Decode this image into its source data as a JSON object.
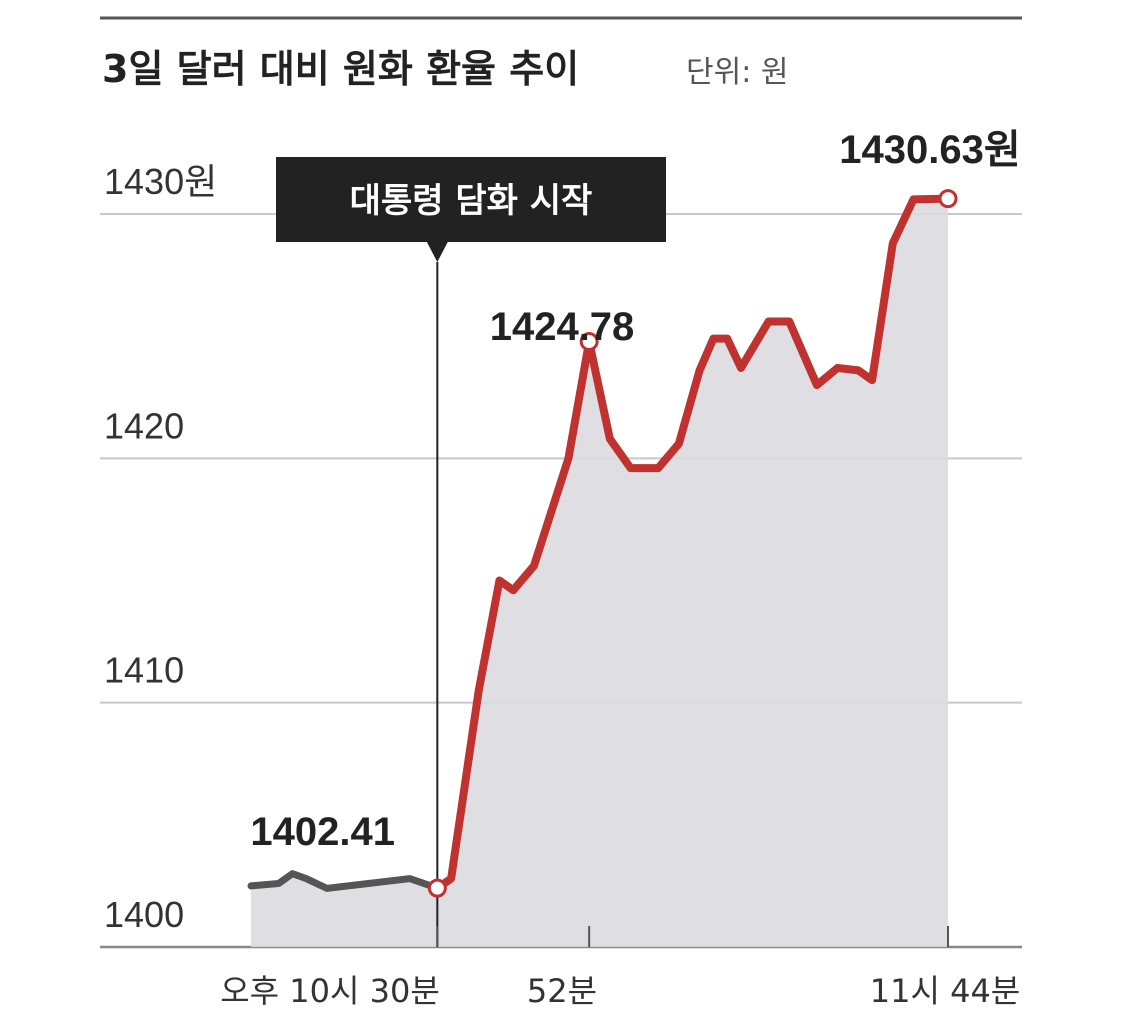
{
  "chart_data": {
    "type": "line",
    "title": "3일 달러 대비 원화 환율 추이",
    "unit_label": "단위: 원",
    "ylim": [
      1400,
      1430
    ],
    "y_ticks": [
      {
        "value": 1430,
        "label": "1430원"
      },
      {
        "value": 1420,
        "label": "1420"
      },
      {
        "value": 1410,
        "label": "1410"
      },
      {
        "value": 1400,
        "label": "1400"
      }
    ],
    "x_labels": [
      {
        "x": 30,
        "label": "오후 10시 30분"
      },
      {
        "x": 52,
        "label": "52분"
      },
      {
        "x": 104,
        "label": "11시 44분"
      }
    ],
    "grid": true,
    "annotation": {
      "x": 30,
      "text": "대통령 담화 시작"
    },
    "series": [
      {
        "color": "#555555",
        "points": [
          [
            3,
            1402.5
          ],
          [
            7,
            1402.6
          ],
          [
            9,
            1403.0
          ],
          [
            11,
            1402.8
          ],
          [
            14,
            1402.4
          ],
          [
            20,
            1402.6
          ],
          [
            26,
            1402.8
          ],
          [
            30,
            1402.41
          ]
        ]
      },
      {
        "color": "#c0322f",
        "points": [
          [
            30,
            1402.41
          ],
          [
            32,
            1402.8
          ],
          [
            36,
            1410.5
          ],
          [
            39,
            1415.0
          ],
          [
            41,
            1414.6
          ],
          [
            44,
            1415.6
          ],
          [
            49,
            1420.0
          ],
          [
            52,
            1424.78
          ],
          [
            55,
            1420.8
          ],
          [
            58,
            1419.6
          ],
          [
            62,
            1419.6
          ],
          [
            65,
            1420.6
          ],
          [
            68,
            1423.6
          ],
          [
            70,
            1424.9
          ],
          [
            72,
            1424.9
          ],
          [
            74,
            1423.7
          ],
          [
            78,
            1425.6
          ],
          [
            81,
            1425.6
          ],
          [
            85,
            1423.0
          ],
          [
            88,
            1423.7
          ],
          [
            91,
            1423.6
          ],
          [
            93,
            1423.2
          ],
          [
            96,
            1428.8
          ],
          [
            99,
            1430.6
          ],
          [
            104,
            1430.63
          ]
        ]
      }
    ],
    "highlighted_points": [
      {
        "x": 30,
        "y": 1402.41,
        "label": "1402.41"
      },
      {
        "x": 52,
        "y": 1424.78,
        "label": "1424.78"
      },
      {
        "x": 104,
        "y": 1430.63,
        "label": "1430.63원"
      }
    ]
  }
}
